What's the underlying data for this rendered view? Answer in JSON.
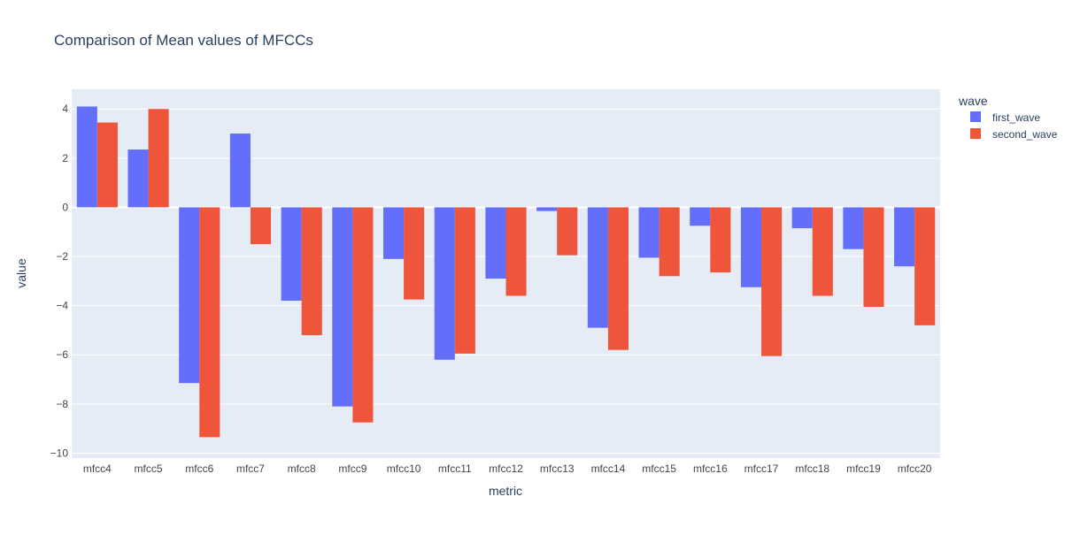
{
  "chart_data": {
    "type": "bar",
    "title": "Comparison of Mean values of MFCCs",
    "xlabel": "metric",
    "ylabel": "value",
    "ylim": [
      -10.2,
      4.8
    ],
    "yticks": [
      4,
      2,
      0,
      -2,
      -4,
      -6,
      -8,
      -10
    ],
    "ytick_labels": [
      "4",
      "2",
      "0",
      "−2",
      "−4",
      "−6",
      "−8",
      "−10"
    ],
    "grid": true,
    "legend": {
      "title": "wave",
      "position": "right"
    },
    "categories": [
      "mfcc4",
      "mfcc5",
      "mfcc6",
      "mfcc7",
      "mfcc8",
      "mfcc9",
      "mfcc10",
      "mfcc11",
      "mfcc12",
      "mfcc13",
      "mfcc14",
      "mfcc15",
      "mfcc16",
      "mfcc17",
      "mfcc18",
      "mfcc19",
      "mfcc20"
    ],
    "series": [
      {
        "name": "first_wave",
        "color": "#636efa",
        "values": [
          4.1,
          2.35,
          -7.15,
          3.0,
          -3.8,
          -8.1,
          -2.1,
          -6.2,
          -2.9,
          -0.15,
          -4.9,
          -2.05,
          -0.75,
          -3.25,
          -0.85,
          -1.7,
          -2.4
        ]
      },
      {
        "name": "second_wave",
        "color": "#ef553b",
        "values": [
          3.45,
          4.0,
          -9.35,
          -1.5,
          -5.2,
          -8.75,
          -3.75,
          -5.95,
          -3.6,
          -1.95,
          -5.8,
          -2.8,
          -2.65,
          -6.05,
          -3.6,
          -4.05,
          -4.8
        ]
      }
    ],
    "colors": {
      "plot_bg": "#e5ecf6",
      "grid": "#ffffff",
      "text": "#2a3f5f",
      "tick_text": "#444444"
    }
  }
}
